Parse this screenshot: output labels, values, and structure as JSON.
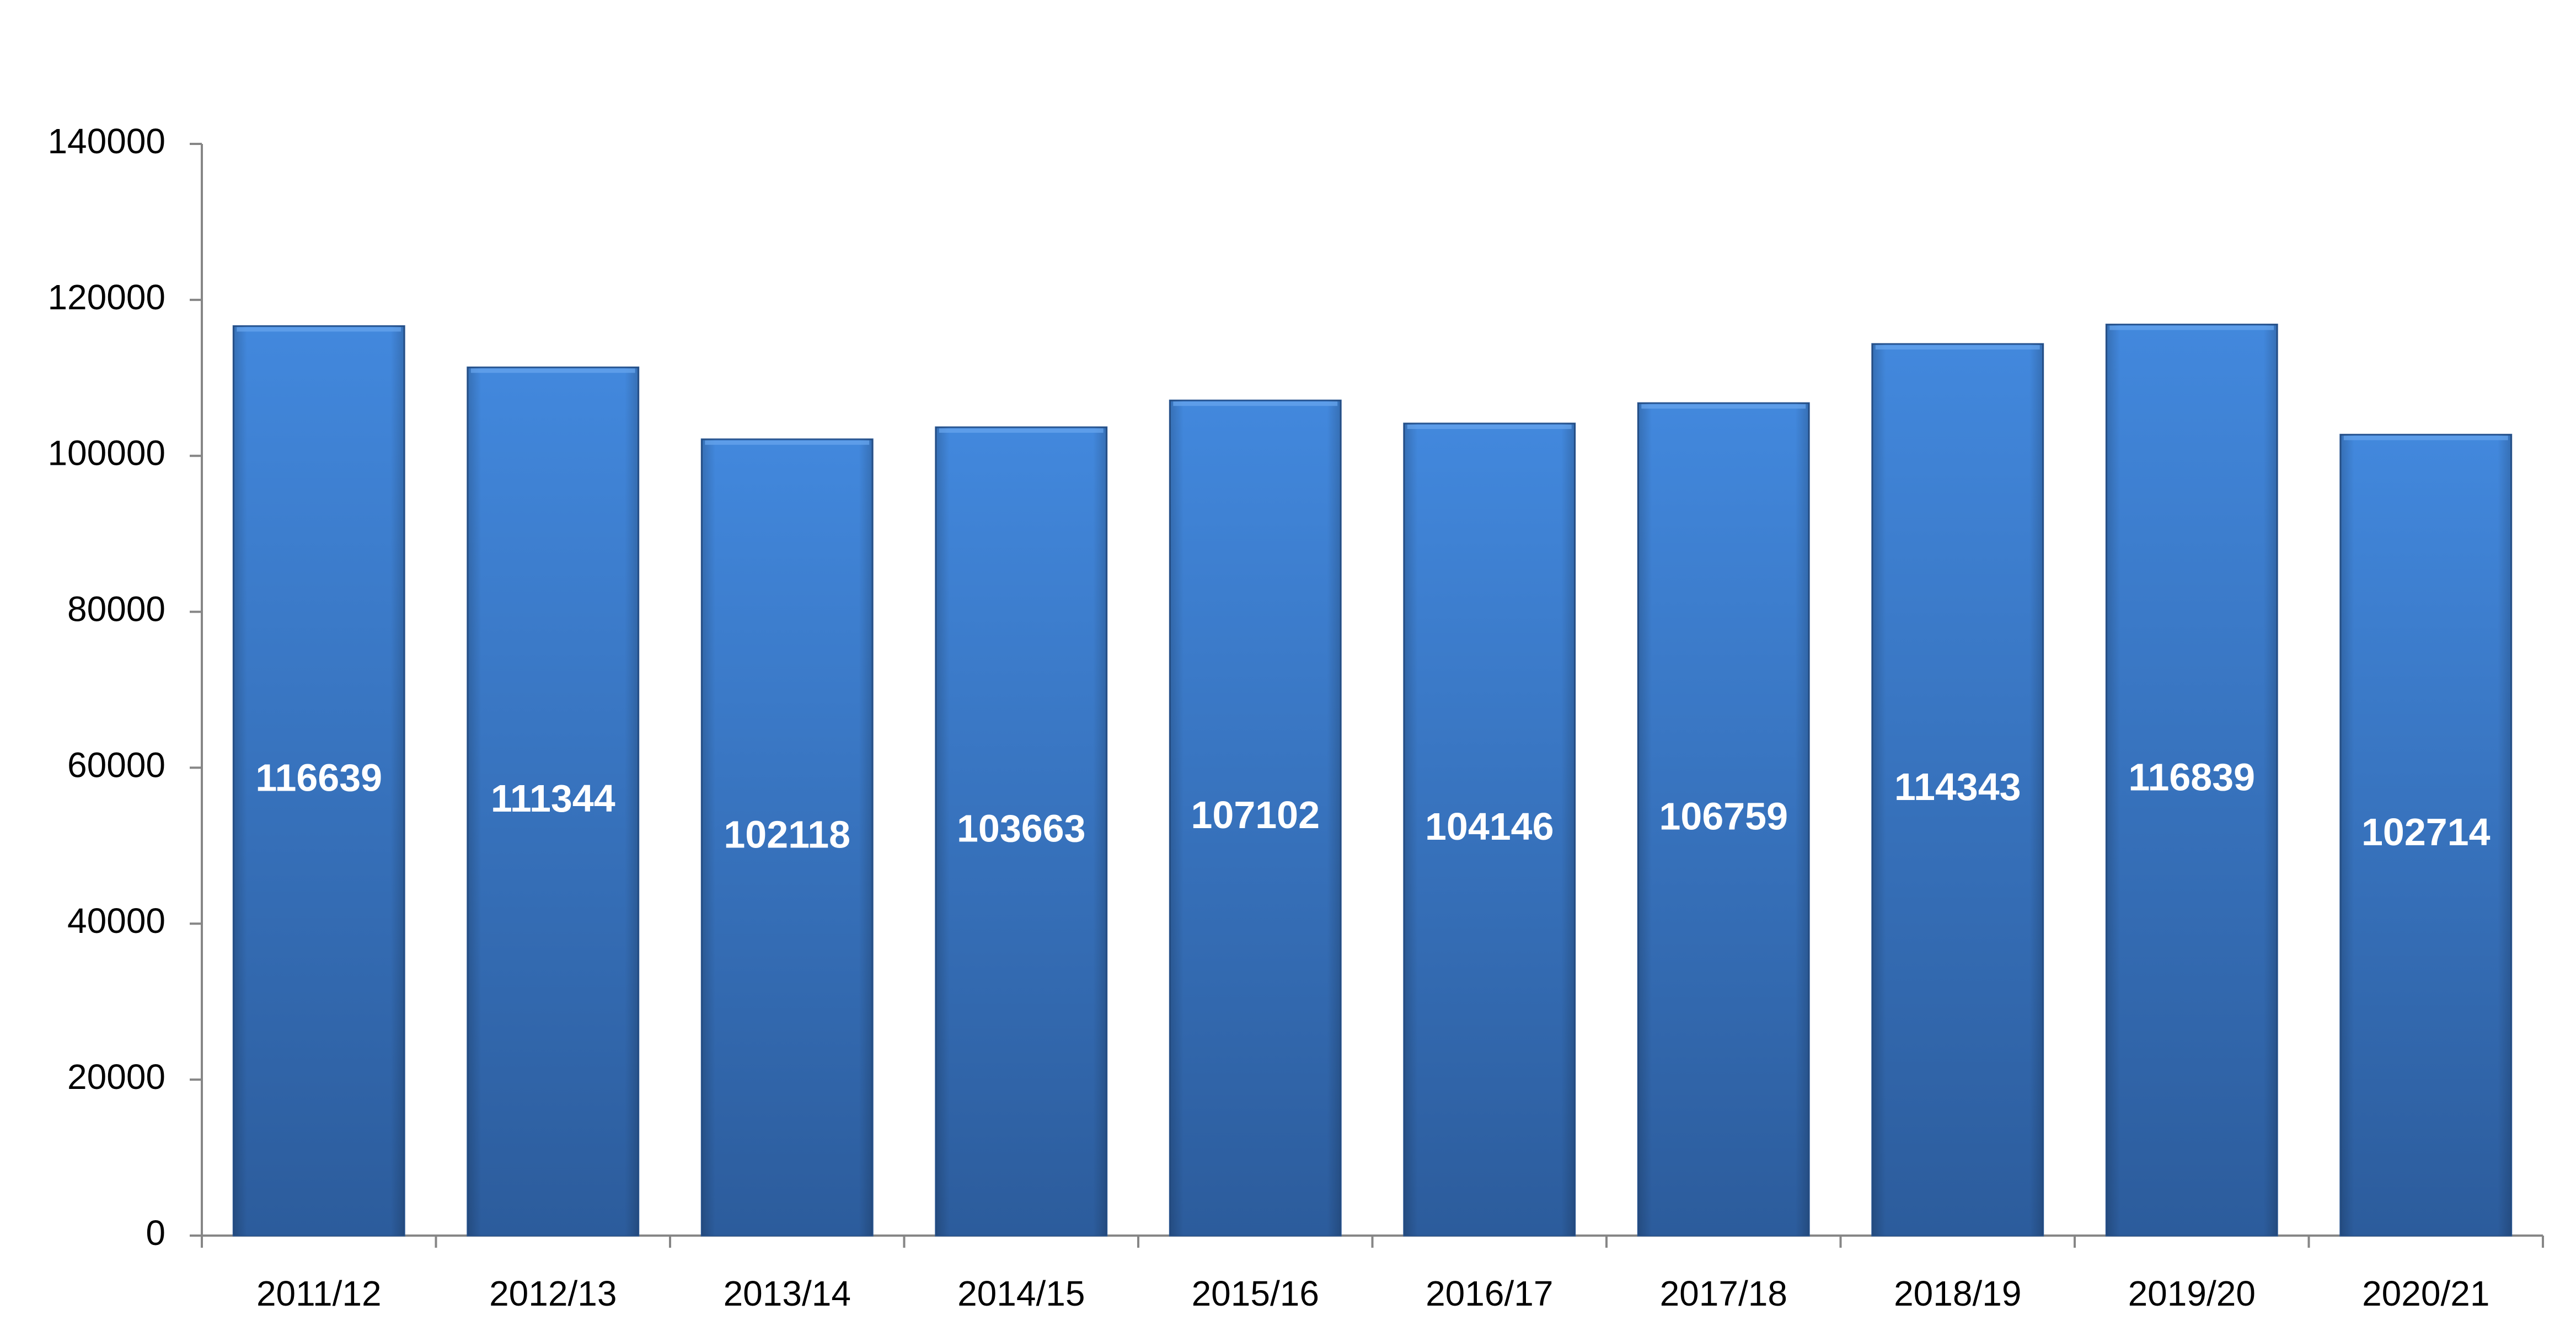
{
  "chart_data": {
    "type": "bar",
    "categories": [
      "2011/12",
      "2012/13",
      "2013/14",
      "2014/15",
      "2015/16",
      "2016/17",
      "2017/18",
      "2018/19",
      "2019/20",
      "2020/21"
    ],
    "values": [
      116639,
      111344,
      102118,
      103663,
      107102,
      104146,
      106759,
      114343,
      116839,
      102714
    ],
    "color": "#3b7dd3",
    "ylim": [
      0,
      140000
    ],
    "yticks": [
      0,
      20000,
      40000,
      60000,
      80000,
      100000,
      120000,
      140000
    ],
    "grid": false
  }
}
